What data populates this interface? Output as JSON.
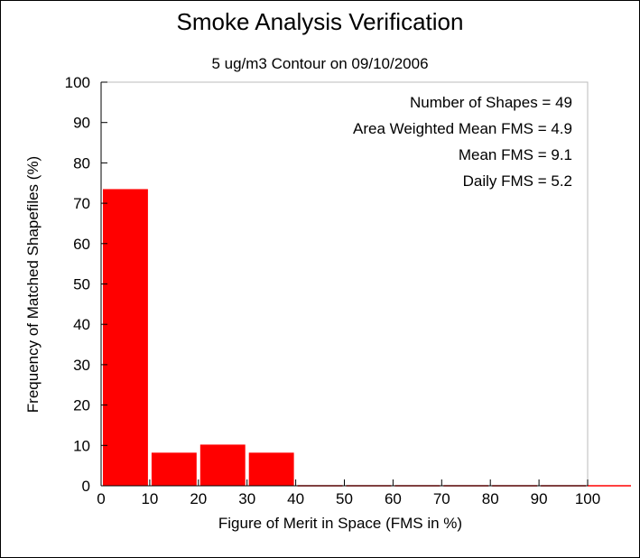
{
  "chart_data": {
    "type": "bar",
    "title": "Smoke Analysis Verification",
    "subtitle": "5 ug/m3 Contour on 09/10/2006",
    "xlabel": "Figure of Merit in Space (FMS in %)",
    "ylabel": "Frequency of Matched Shapefiles (%)",
    "xlim": [
      0,
      100
    ],
    "ylim": [
      0,
      100
    ],
    "xticks": [
      0,
      10,
      20,
      30,
      40,
      50,
      60,
      70,
      80,
      90,
      100
    ],
    "yticks": [
      0,
      10,
      20,
      30,
      40,
      50,
      60,
      70,
      80,
      90,
      100
    ],
    "bin_width": 10,
    "bins": [
      {
        "start": 0,
        "end": 10,
        "value": 73.5
      },
      {
        "start": 10,
        "end": 20,
        "value": 8.2
      },
      {
        "start": 20,
        "end": 30,
        "value": 10.2
      },
      {
        "start": 30,
        "end": 40,
        "value": 8.2
      },
      {
        "start": 40,
        "end": 50,
        "value": 0
      },
      {
        "start": 50,
        "end": 60,
        "value": 0
      },
      {
        "start": 60,
        "end": 70,
        "value": 0
      },
      {
        "start": 70,
        "end": 80,
        "value": 0
      },
      {
        "start": 80,
        "end": 90,
        "value": 0
      },
      {
        "start": 90,
        "end": 100,
        "value": 0
      }
    ],
    "annotations": [
      "Number of Shapes = 49",
      "Area Weighted Mean FMS = 4.9",
      "Mean FMS = 9.1",
      "Daily FMS = 5.2"
    ],
    "bar_color": "#ff0000",
    "grid": false
  }
}
